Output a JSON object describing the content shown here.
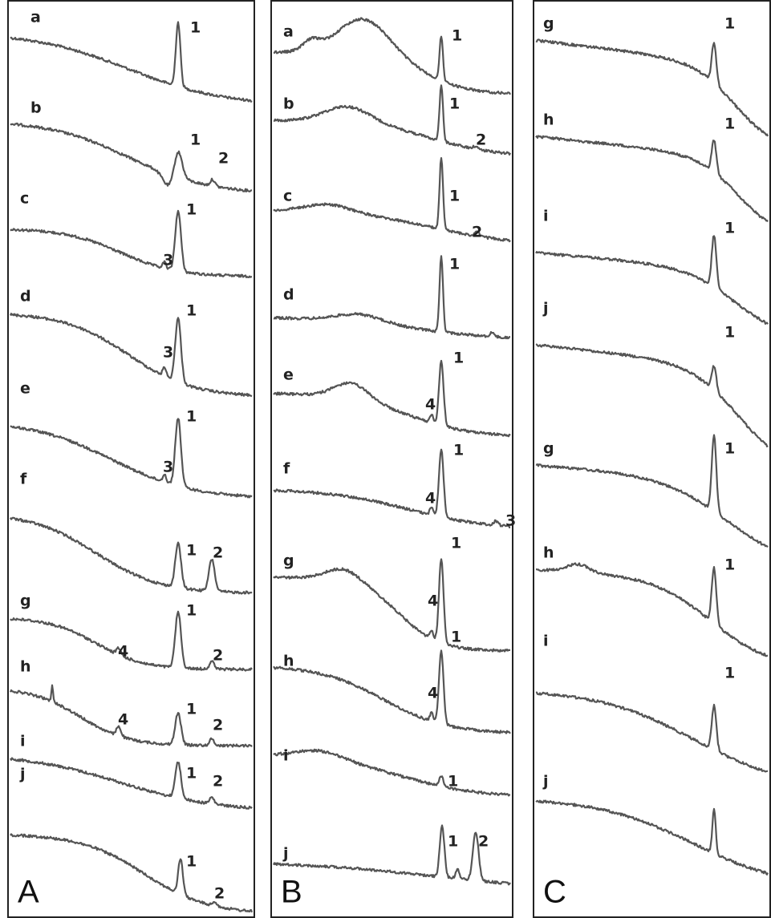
{
  "panels": [
    {
      "label": "A",
      "traces": [
        {
          "label": "a",
          "peaks": [
            "1"
          ]
        },
        {
          "label": "b",
          "peaks": [
            "1",
            "2"
          ]
        },
        {
          "label": "c",
          "peaks": [
            "1",
            "3"
          ]
        },
        {
          "label": "d",
          "peaks": [
            "1",
            "3"
          ]
        },
        {
          "label": "e",
          "peaks": [
            "1",
            "3"
          ]
        },
        {
          "label": "f",
          "peaks": [
            "1",
            "2"
          ]
        },
        {
          "label": "g",
          "peaks": [
            "1",
            "4",
            "2"
          ]
        },
        {
          "label": "h",
          "peaks": [
            "4",
            "1",
            "2"
          ]
        },
        {
          "label": "i",
          "peaks": [
            "1",
            "2"
          ]
        },
        {
          "label": "j",
          "peaks": [
            "1",
            "2"
          ]
        }
      ]
    },
    {
      "label": "B",
      "traces": [
        {
          "label": "a",
          "peaks": [
            "1"
          ]
        },
        {
          "label": "b",
          "peaks": [
            "1",
            "2"
          ]
        },
        {
          "label": "c",
          "peaks": [
            "1",
            "2"
          ]
        },
        {
          "label": "d",
          "peaks": [
            "1"
          ]
        },
        {
          "label": "e",
          "peaks": [
            "4",
            "1"
          ]
        },
        {
          "label": "f",
          "peaks": [
            "4",
            "1",
            "3"
          ]
        },
        {
          "label": "g",
          "peaks": [
            "4",
            "1"
          ]
        },
        {
          "label": "h",
          "peaks": [
            "4",
            "1"
          ]
        },
        {
          "label": "i",
          "peaks": [
            "1"
          ]
        },
        {
          "label": "j",
          "peaks": [
            "1",
            "2"
          ]
        }
      ]
    },
    {
      "label": "C",
      "traces": [
        {
          "label": "g",
          "peaks": [
            "1"
          ]
        },
        {
          "label": "h",
          "peaks": [
            "1"
          ]
        },
        {
          "label": "i",
          "peaks": [
            "1"
          ]
        },
        {
          "label": "j",
          "peaks": [
            "1"
          ]
        },
        {
          "label": "g",
          "peaks": [
            "1"
          ]
        },
        {
          "label": "h",
          "peaks": [
            "1"
          ]
        },
        {
          "label": "i",
          "peaks": [
            "1"
          ]
        },
        {
          "label": "j"
        }
      ]
    }
  ]
}
